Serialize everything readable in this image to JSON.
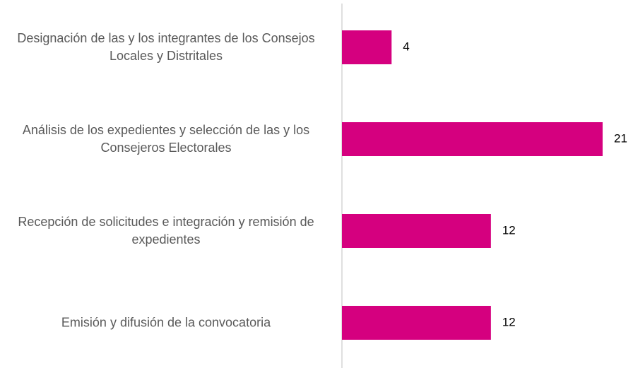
{
  "chart_data": {
    "type": "bar",
    "orientation": "horizontal",
    "categories": [
      "Designación de las y los integrantes de los Consejos Locales y Distritales",
      "Análisis de los expedientes y selección de las y los Consejeros Electorales",
      "Recepción de solicitudes e integración y remisión de expedientes",
      "Emisión y difusión de la convocatoria"
    ],
    "values": [
      4,
      21,
      12,
      12
    ],
    "color": "#d5007f"
  }
}
